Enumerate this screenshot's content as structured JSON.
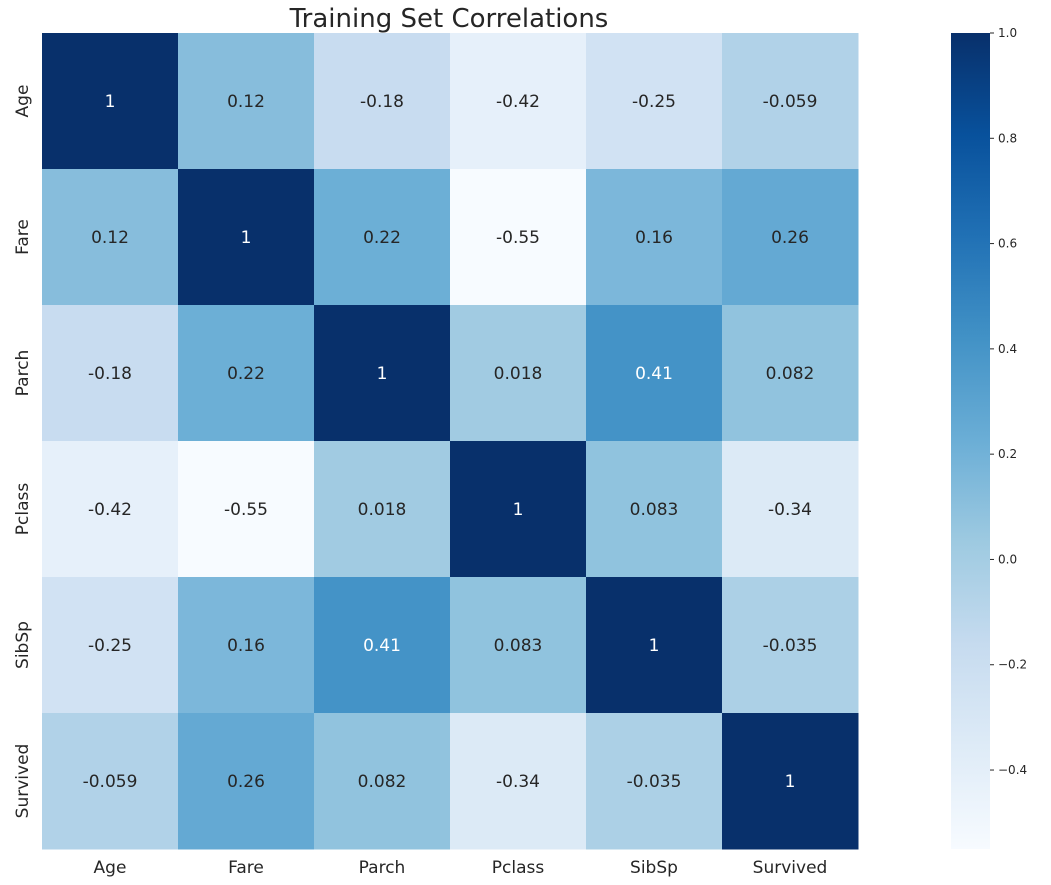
{
  "chart_data": {
    "type": "heatmap",
    "title": "Training Set Correlations",
    "xlabel": "",
    "ylabel": "",
    "row_labels": [
      "Age",
      "Fare",
      "Parch",
      "Pclass",
      "SibSp",
      "Survived"
    ],
    "col_labels": [
      "Age",
      "Fare",
      "Parch",
      "Pclass",
      "SibSp",
      "Survived"
    ],
    "values": [
      [
        1,
        0.12,
        -0.18,
        -0.42,
        -0.25,
        -0.059
      ],
      [
        0.12,
        1,
        0.22,
        -0.55,
        0.16,
        0.26
      ],
      [
        -0.18,
        0.22,
        1,
        0.018,
        0.41,
        0.082
      ],
      [
        -0.42,
        -0.55,
        0.018,
        1,
        0.083,
        -0.34
      ],
      [
        -0.25,
        0.16,
        0.41,
        0.083,
        1,
        -0.035
      ],
      [
        -0.059,
        0.26,
        0.082,
        -0.34,
        -0.035,
        1
      ]
    ],
    "value_labels": [
      [
        "1",
        "0.12",
        "-0.18",
        "-0.42",
        "-0.25",
        "-0.059"
      ],
      [
        "0.12",
        "1",
        "0.22",
        "-0.55",
        "0.16",
        "0.26"
      ],
      [
        "-0.18",
        "0.22",
        "1",
        "0.018",
        "0.41",
        "0.082"
      ],
      [
        "-0.42",
        "-0.55",
        "0.018",
        "1",
        "0.083",
        "-0.34"
      ],
      [
        "-0.25",
        "0.16",
        "0.41",
        "0.083",
        "1",
        "-0.035"
      ],
      [
        "-0.059",
        "0.26",
        "0.082",
        "-0.34",
        "-0.035",
        "1"
      ]
    ],
    "colormap": "Blues",
    "color_range": [
      -0.55,
      1.0
    ],
    "colorbar_ticks": [
      1.0,
      0.8,
      0.6,
      0.4,
      0.2,
      0.0,
      -0.2,
      -0.4
    ],
    "colorbar_tick_labels": [
      "1.0",
      "0.8",
      "0.6",
      "0.4",
      "0.2",
      "0.0",
      "−0.2",
      "−0.4"
    ],
    "colors": {
      "text_dark": "#262626",
      "text_light": "#ffffff",
      "axis_text": "#262626"
    },
    "colormap_stops": [
      "#f7fbff",
      "#deebf7",
      "#c6dbef",
      "#9ecae1",
      "#6baed6",
      "#4292c6",
      "#2171b5",
      "#08519c",
      "#08306b"
    ]
  }
}
